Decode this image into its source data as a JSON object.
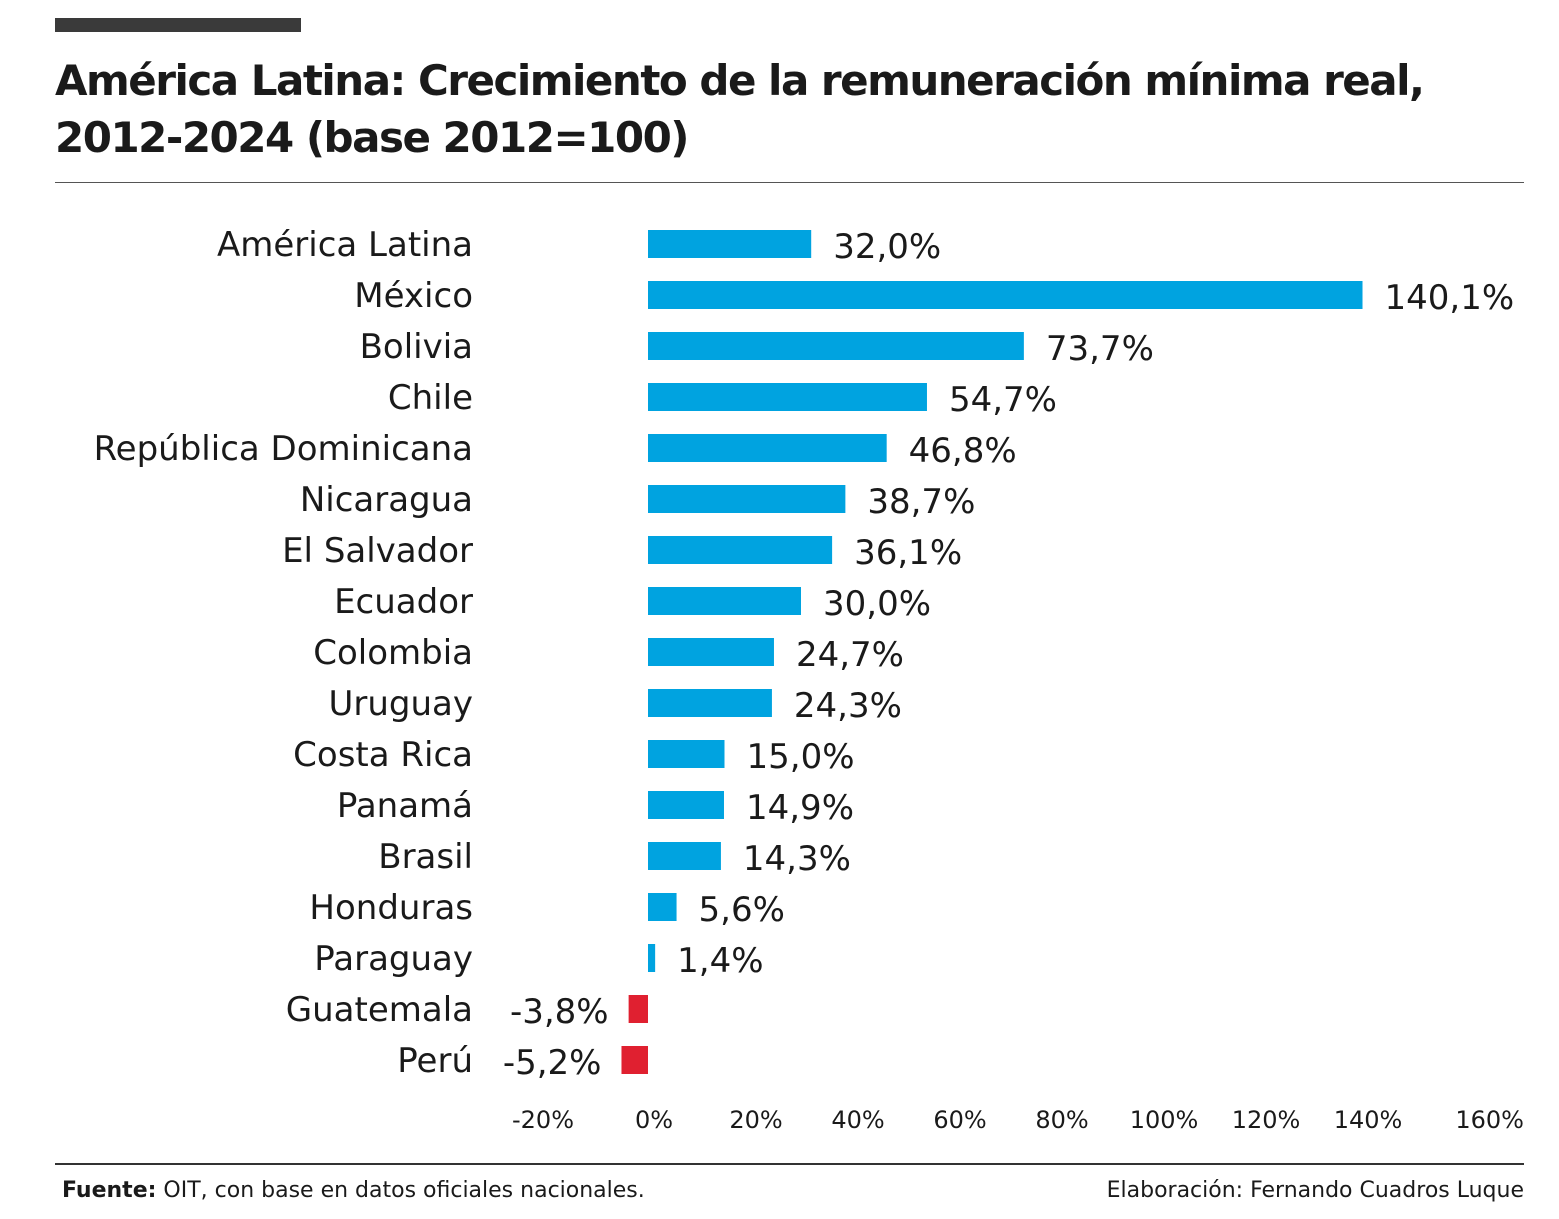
{
  "title": "América Latina: Crecimiento de la remuneración mínima real, 2012-2024 (base 2012=100)",
  "source": {
    "label": "Fuente:",
    "text": " OIT, con base en datos oficiales nacionales."
  },
  "credit": "Elaboración: Fernando Cuadros Luque",
  "colors": {
    "positive": "#00a3e0",
    "negative": "#e02030"
  },
  "chart_data": {
    "type": "bar",
    "orientation": "horizontal",
    "categories": [
      "América Latina",
      "México",
      "Bolivia",
      "Chile",
      "República Dominicana",
      "Nicaragua",
      "El Salvador",
      "Ecuador",
      "Colombia",
      "Uruguay",
      "Costa Rica",
      "Panamá",
      "Brasil",
      "Honduras",
      "Paraguay",
      "Guatemala",
      "Perú"
    ],
    "values": [
      32.0,
      140.1,
      73.7,
      54.7,
      46.8,
      38.7,
      36.1,
      30.0,
      24.7,
      24.3,
      15.0,
      14.9,
      14.3,
      5.6,
      1.4,
      -3.8,
      -5.2
    ],
    "value_labels": [
      "32,0%",
      "140,1%",
      "73,7%",
      "54,7%",
      "46,8%",
      "38,7%",
      "36,1%",
      "30,0%",
      "24,7%",
      "24,3%",
      "15,0%",
      "14,9%",
      "14,3%",
      "5,6%",
      "1,4%",
      "-3,8%",
      "-5,2%"
    ],
    "ticks": [
      -20,
      0,
      20,
      40,
      60,
      80,
      100,
      120,
      140,
      160
    ],
    "tick_labels": [
      "-20%",
      "0%",
      "20%",
      "40%",
      "60%",
      "80%",
      "100%",
      "120%",
      "140%",
      "160%"
    ],
    "xlim": [
      -20,
      160
    ],
    "grid": false,
    "legend": "none"
  }
}
